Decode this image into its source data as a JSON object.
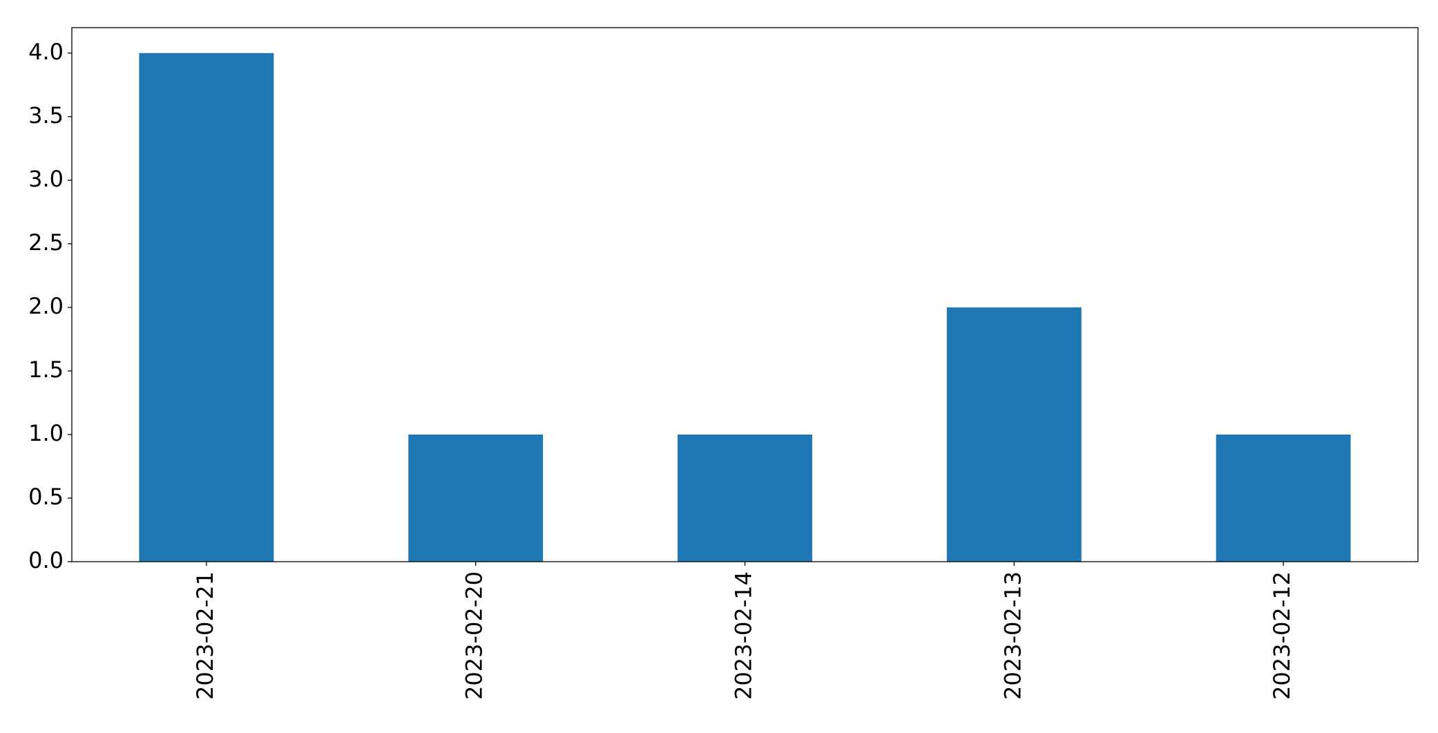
{
  "chart_data": {
    "type": "bar",
    "categories": [
      "2023-02-21",
      "2023-02-20",
      "2023-02-14",
      "2023-02-13",
      "2023-02-12"
    ],
    "values": [
      4,
      1,
      1,
      2,
      1
    ],
    "color": "#1f77b4",
    "ylim": [
      0,
      4.2
    ],
    "yticks": [
      {
        "value": 0,
        "label": "0.0"
      },
      0.5,
      {
        "value": 1,
        "label": "1.0"
      },
      1.5,
      {
        "value": 2,
        "label": "2.0"
      },
      2.5,
      {
        "value": 3,
        "label": "3.0"
      },
      3.5,
      {
        "value": 4,
        "label": "4.0"
      }
    ],
    "grid": false
  }
}
